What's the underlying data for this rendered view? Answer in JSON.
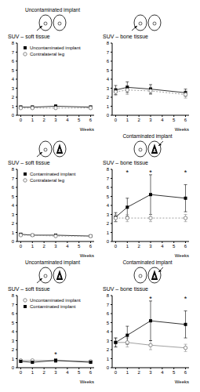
{
  "diagrams": [
    {
      "labels": [
        "Uncontaminated implant"
      ]
    },
    {
      "labels": [
        "Contaminated implant"
      ]
    },
    {
      "labels": [
        "Uncontaminated implant",
        "Contaminated implant"
      ]
    }
  ],
  "chart_data": [
    {
      "type": "line",
      "title": "SUV – soft tissue",
      "x_label": "Weeks",
      "x": [
        0,
        1,
        3,
        6
      ],
      "xlim": [
        -0.3,
        6.3
      ],
      "xticks": [
        0,
        1,
        2,
        3,
        4,
        5,
        6
      ],
      "ylim": [
        0,
        8
      ],
      "yticks": [
        0,
        1,
        2,
        3,
        4,
        5,
        6,
        7,
        8
      ],
      "legend": "upper left",
      "annotations": [],
      "series": [
        {
          "name": "Uncontaminated implant",
          "color": "#000000",
          "marker": "square",
          "line_style": "solid",
          "values": [
            0.9,
            0.9,
            1.0,
            0.9
          ],
          "errors": [
            0.15,
            0.15,
            0.15,
            0.15
          ]
        },
        {
          "name": "Contralateral leg",
          "color": "#888888",
          "marker": "circle",
          "line_style": "dashed",
          "values": [
            0.8,
            0.8,
            0.8,
            0.8
          ],
          "errors": [
            0.1,
            0.1,
            0.1,
            0.1
          ]
        }
      ]
    },
    {
      "type": "line",
      "title": "SUV – bone tissue",
      "x_label": "Weeks",
      "x": [
        0,
        1,
        3,
        6
      ],
      "xlim": [
        -0.3,
        6.3
      ],
      "xticks": [
        0,
        1,
        2,
        3,
        4,
        5,
        6
      ],
      "ylim": [
        0,
        8
      ],
      "yticks": [
        0,
        1,
        2,
        3,
        4,
        5,
        6,
        7,
        8
      ],
      "annotations": [],
      "series": [
        {
          "name": "Uncontaminated implant",
          "color": "#000000",
          "marker": "square",
          "line_style": "solid",
          "values": [
            2.8,
            3.1,
            2.9,
            2.5
          ],
          "errors": [
            0.5,
            0.6,
            0.5,
            0.4
          ]
        },
        {
          "name": "Contralateral leg",
          "color": "#888888",
          "marker": "circle",
          "line_style": "dashed",
          "values": [
            2.6,
            2.8,
            2.7,
            2.3
          ],
          "errors": [
            0.4,
            0.5,
            0.4,
            0.4
          ]
        }
      ]
    },
    {
      "type": "line",
      "title": "SUV – soft tissue",
      "x_label": "Weeks",
      "x": [
        0,
        1,
        3,
        6
      ],
      "xlim": [
        -0.3,
        6.3
      ],
      "xticks": [
        0,
        1,
        2,
        3,
        4,
        5,
        6
      ],
      "ylim": [
        0,
        8
      ],
      "yticks": [
        0,
        1,
        2,
        3,
        4,
        5,
        6,
        7,
        8
      ],
      "legend": "upper left",
      "annotations": [],
      "series": [
        {
          "name": "Contaminated implant",
          "color": "#000000",
          "marker": "square",
          "line_style": "solid",
          "values": [
            0.8,
            0.7,
            0.7,
            0.6
          ],
          "errors": [
            0.1,
            0.1,
            0.1,
            0.1
          ]
        },
        {
          "name": "Contralateral leg",
          "color": "#888888",
          "marker": "circle",
          "line_style": "dashed",
          "values": [
            0.7,
            0.7,
            0.6,
            0.6
          ],
          "errors": [
            0.1,
            0.1,
            0.1,
            0.1
          ]
        }
      ]
    },
    {
      "type": "line",
      "title": "SUV – bone tissue",
      "x_label": "Weeks",
      "x": [
        0,
        1,
        3,
        6
      ],
      "xlim": [
        -0.3,
        6.3
      ],
      "xticks": [
        0,
        1,
        2,
        3,
        4,
        5,
        6
      ],
      "ylim": [
        0,
        8
      ],
      "yticks": [
        0,
        1,
        2,
        3,
        4,
        5,
        6,
        7,
        8
      ],
      "annotations": [
        {
          "x": 1,
          "y": 7.7,
          "text": "*"
        },
        {
          "x": 3,
          "y": 7.7,
          "text": "*"
        },
        {
          "x": 6,
          "y": 7.7,
          "text": "*"
        }
      ],
      "series": [
        {
          "name": "Contaminated implant",
          "color": "#000000",
          "marker": "square",
          "line_style": "solid",
          "values": [
            2.7,
            3.8,
            5.2,
            4.8
          ],
          "errors": [
            0.5,
            1.0,
            2.2,
            1.5
          ]
        },
        {
          "name": "Contralateral leg",
          "color": "#888888",
          "marker": "circle",
          "line_style": "dashed",
          "values": [
            2.6,
            2.6,
            2.6,
            2.6
          ],
          "errors": [
            0.4,
            0.4,
            0.4,
            0.4
          ]
        }
      ]
    },
    {
      "type": "line",
      "title": "SUV – soft tissue",
      "x_label": "Weeks",
      "x": [
        0,
        1,
        3,
        6
      ],
      "xlim": [
        -0.3,
        6.3
      ],
      "xticks": [
        0,
        1,
        2,
        3,
        4,
        5,
        6
      ],
      "ylim": [
        0,
        8
      ],
      "yticks": [
        0,
        1,
        2,
        3,
        4,
        5,
        6,
        7,
        8
      ],
      "legend": "upper left",
      "annotations": [
        {
          "x": 3,
          "y": 1.5,
          "text": "*"
        }
      ],
      "series": [
        {
          "name": "Uncontaminated implant",
          "color": "#888888",
          "marker": "circle",
          "line_style": "solid",
          "values": [
            0.8,
            0.8,
            0.8,
            0.7
          ],
          "errors": [
            0.1,
            0.1,
            0.1,
            0.1
          ]
        },
        {
          "name": "Contaminated implant",
          "color": "#000000",
          "marker": "square",
          "line_style": "solid",
          "values": [
            0.7,
            0.6,
            0.8,
            0.6
          ],
          "errors": [
            0.1,
            0.1,
            0.2,
            0.1
          ]
        }
      ]
    },
    {
      "type": "line",
      "title": "SUV – bone tissue",
      "x_label": "Weeks",
      "x": [
        0,
        1,
        3,
        6
      ],
      "xlim": [
        -0.3,
        6.3
      ],
      "xticks": [
        0,
        1,
        2,
        3,
        4,
        5,
        6
      ],
      "ylim": [
        0,
        8
      ],
      "yticks": [
        0,
        1,
        2,
        3,
        4,
        5,
        6,
        7,
        8
      ],
      "annotations": [
        {
          "x": 3,
          "y": 7.7,
          "text": "*"
        },
        {
          "x": 6,
          "y": 7.7,
          "text": "*"
        }
      ],
      "series": [
        {
          "name": "Uncontaminated implant",
          "color": "#888888",
          "marker": "circle",
          "line_style": "solid",
          "values": [
            2.8,
            2.8,
            2.5,
            2.2
          ],
          "errors": [
            0.5,
            0.5,
            0.5,
            0.4
          ]
        },
        {
          "name": "Contaminated implant",
          "color": "#000000",
          "marker": "square",
          "line_style": "solid",
          "values": [
            2.8,
            3.6,
            5.2,
            4.8
          ],
          "errors": [
            0.5,
            1.0,
            2.2,
            1.5
          ]
        }
      ]
    }
  ]
}
